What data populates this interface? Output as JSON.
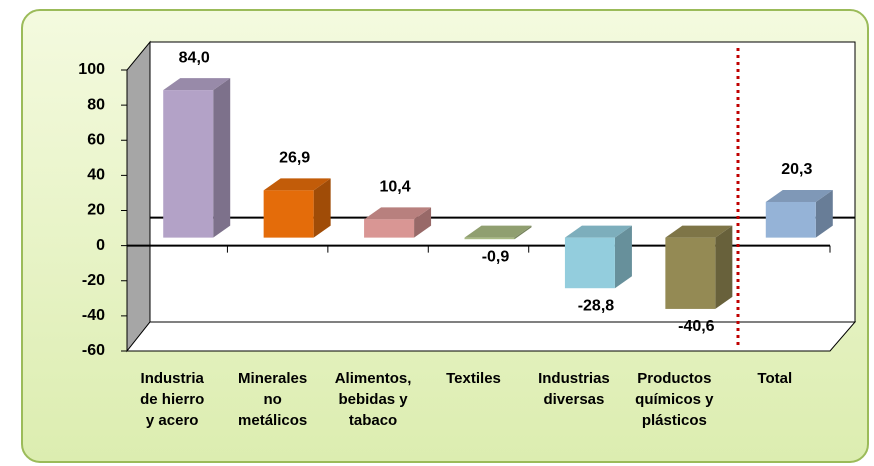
{
  "chart_data": {
    "type": "bar3d",
    "categories": [
      "Industria\nde hierro\ny acero",
      "Minerales\nno\nmetálicos",
      "Alimentos,\nbebidas y\ntabaco",
      "Textiles",
      "Industrias\ndiversas",
      "Productos\nquímicos y\nplásticos",
      "Total"
    ],
    "values": [
      84.0,
      26.9,
      10.4,
      -0.9,
      -28.8,
      -40.6,
      20.3
    ],
    "value_labels": [
      "84,0",
      "26,9",
      "10,4",
      "-0,9",
      "-28,8",
      "-40,6",
      "20,3"
    ],
    "colors": [
      "#b3a2c7",
      "#e46c0a",
      "#d99694",
      "#a9bb84",
      "#93cddd",
      "#948a54",
      "#95b3d7"
    ],
    "ylim": [
      -60,
      100
    ],
    "yticks": [
      -60,
      -40,
      -20,
      0,
      20,
      40,
      60,
      80,
      100
    ],
    "grid": false
  }
}
